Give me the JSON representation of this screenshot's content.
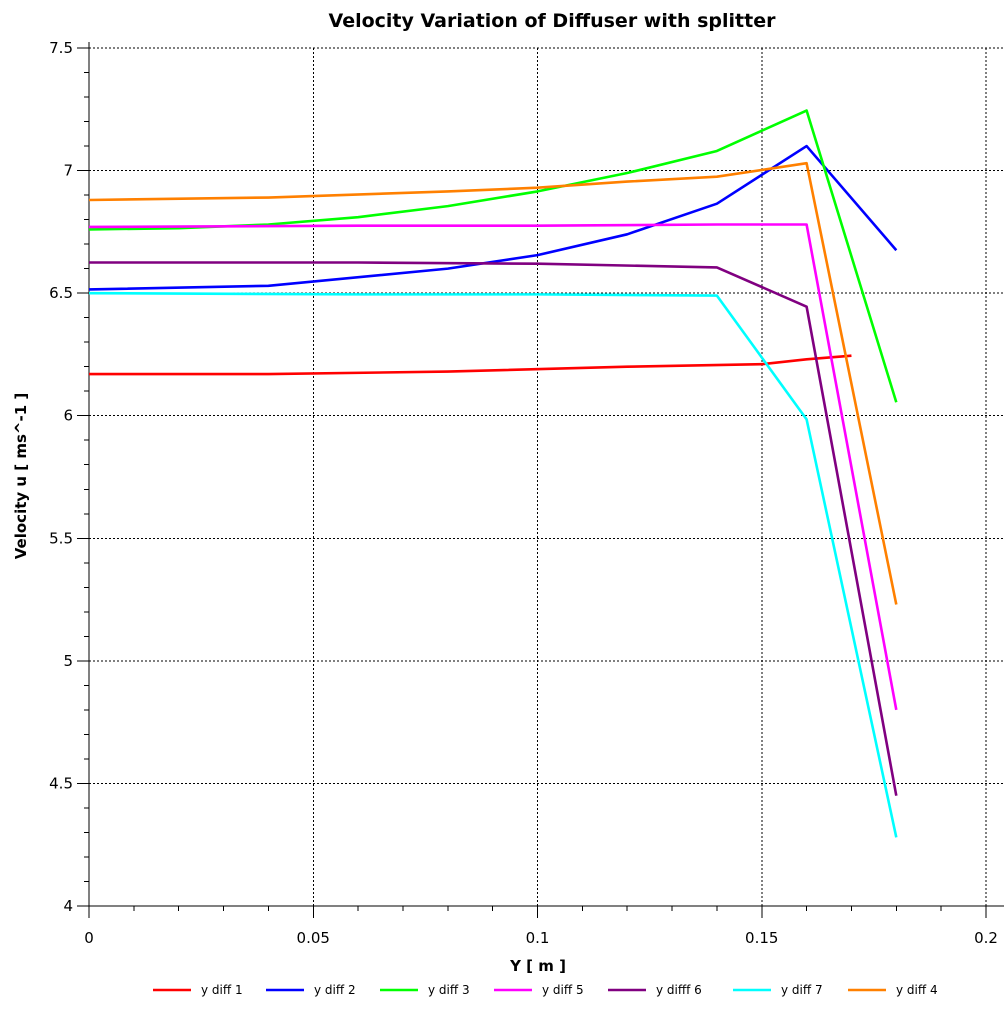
{
  "chart_data": {
    "type": "line",
    "title": "Velocity Variation of Diffuser with splitter",
    "xlabel": "Y [ m ]",
    "ylabel": "Velocity u [ ms^-1 ]",
    "xlim": [
      0,
      0.2
    ],
    "ylim": [
      4,
      7.5
    ],
    "x_ticks": [
      0,
      0.05,
      0.1,
      0.15,
      0.2
    ],
    "x_tick_labels": [
      "0",
      "0.05",
      "0.1",
      "0.15",
      "0.2"
    ],
    "y_ticks": [
      4,
      4.5,
      5,
      5.5,
      6,
      6.5,
      7,
      7.5
    ],
    "y_tick_labels": [
      "4",
      "4.5",
      "5",
      "5.5",
      "6",
      "6.5",
      "7",
      "7.5"
    ],
    "grid": true,
    "legend_position": "bottom",
    "series": [
      {
        "name": "y diff 1",
        "color": "#ff0000",
        "points": [
          [
            0,
            6.17
          ],
          [
            0.04,
            6.17
          ],
          [
            0.08,
            6.18
          ],
          [
            0.12,
            6.2
          ],
          [
            0.15,
            6.21
          ],
          [
            0.16,
            6.23
          ],
          [
            0.17,
            6.245
          ]
        ]
      },
      {
        "name": "y diff 2",
        "color": "#0000ff",
        "points": [
          [
            0,
            6.515
          ],
          [
            0.04,
            6.53
          ],
          [
            0.08,
            6.6
          ],
          [
            0.1,
            6.655
          ],
          [
            0.12,
            6.74
          ],
          [
            0.14,
            6.865
          ],
          [
            0.16,
            7.1
          ],
          [
            0.18,
            6.675
          ]
        ]
      },
      {
        "name": "y diff 3",
        "color": "#00ff00",
        "points": [
          [
            0,
            6.76
          ],
          [
            0.02,
            6.765
          ],
          [
            0.04,
            6.78
          ],
          [
            0.06,
            6.81
          ],
          [
            0.08,
            6.855
          ],
          [
            0.1,
            6.915
          ],
          [
            0.12,
            6.99
          ],
          [
            0.14,
            7.08
          ],
          [
            0.16,
            7.245
          ],
          [
            0.18,
            6.055
          ]
        ]
      },
      {
        "name": "y diff 5",
        "color": "#ff00ff",
        "points": [
          [
            0,
            6.77
          ],
          [
            0.06,
            6.775
          ],
          [
            0.1,
            6.775
          ],
          [
            0.14,
            6.78
          ],
          [
            0.16,
            6.78
          ],
          [
            0.18,
            4.8
          ]
        ]
      },
      {
        "name": "y difff 6",
        "color": "#800080",
        "points": [
          [
            0,
            6.625
          ],
          [
            0.06,
            6.625
          ],
          [
            0.1,
            6.62
          ],
          [
            0.14,
            6.605
          ],
          [
            0.16,
            6.445
          ],
          [
            0.18,
            4.45
          ]
        ]
      },
      {
        "name": "y diff 7",
        "color": "#00ffff",
        "points": [
          [
            0,
            6.5
          ],
          [
            0.06,
            6.495
          ],
          [
            0.1,
            6.495
          ],
          [
            0.14,
            6.49
          ],
          [
            0.16,
            5.985
          ],
          [
            0.18,
            4.28
          ]
        ]
      },
      {
        "name": "y diff 4",
        "color": "#ff8000",
        "points": [
          [
            0,
            6.88
          ],
          [
            0.04,
            6.89
          ],
          [
            0.08,
            6.915
          ],
          [
            0.1,
            6.93
          ],
          [
            0.12,
            6.955
          ],
          [
            0.14,
            6.975
          ],
          [
            0.16,
            7.03
          ],
          [
            0.18,
            5.23
          ]
        ]
      }
    ]
  }
}
